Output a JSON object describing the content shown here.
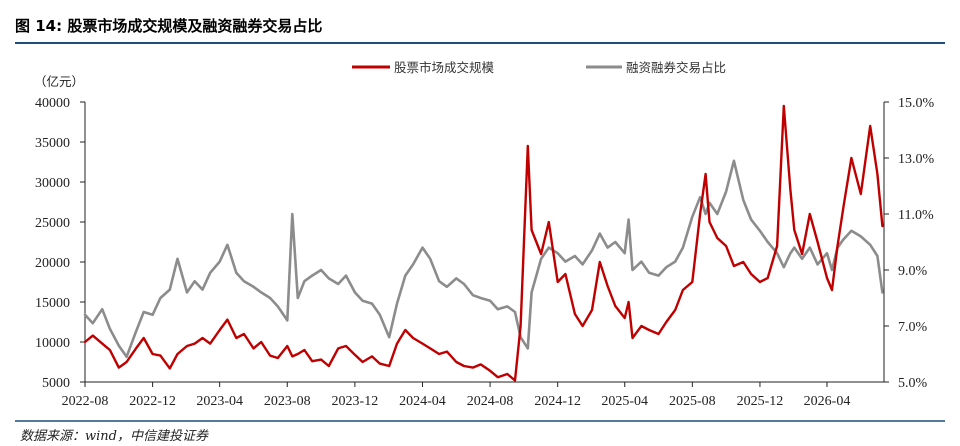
{
  "title": "图 14: 股票市场成交规模及融资融券交易占比",
  "source": "数据来源：wind，中信建投证券",
  "colors": {
    "rule": "#1F4E79"
  },
  "chart_data": {
    "type": "line",
    "title": "图 14: 股票市场成交规模及融资融券交易占比",
    "left_unit": "（亿元）",
    "legend": "top-center",
    "grid": false,
    "x_ticks": [
      "2022-08",
      "2022-12",
      "2023-04",
      "2023-08",
      "2023-12",
      "2024-04",
      "2024-08",
      "2024-12",
      "2025-04",
      "2025-08",
      "2025-12",
      "2026-04"
    ],
    "y_left": {
      "range": [
        5000,
        40000
      ],
      "ticks": [
        5000,
        10000,
        15000,
        20000,
        25000,
        30000,
        35000,
        40000
      ]
    },
    "y_right": {
      "range": [
        5.0,
        15.0
      ],
      "ticks": [
        5.0,
        7.0,
        9.0,
        11.0,
        13.0,
        15.0
      ],
      "tick_labels": [
        "5.0%",
        "7.0%",
        "9.0%",
        "11.0%",
        "13.0%",
        "15.0%"
      ]
    },
    "x": [
      "2022-08-01",
      "2022-08-15",
      "2022-09-01",
      "2022-09-15",
      "2022-10-01",
      "2022-10-15",
      "2022-11-01",
      "2022-11-15",
      "2022-12-01",
      "2022-12-15",
      "2023-01-01",
      "2023-01-15",
      "2023-02-01",
      "2023-02-15",
      "2023-03-01",
      "2023-03-15",
      "2023-04-01",
      "2023-04-15",
      "2023-05-01",
      "2023-05-15",
      "2023-06-01",
      "2023-06-15",
      "2023-07-01",
      "2023-07-15",
      "2023-08-01",
      "2023-08-10",
      "2023-08-20",
      "2023-09-01",
      "2023-09-15",
      "2023-10-01",
      "2023-10-15",
      "2023-11-01",
      "2023-11-15",
      "2023-12-01",
      "2023-12-15",
      "2024-01-01",
      "2024-01-15",
      "2024-02-01",
      "2024-02-15",
      "2024-03-01",
      "2024-03-15",
      "2024-04-01",
      "2024-04-15",
      "2024-05-01",
      "2024-05-15",
      "2024-06-01",
      "2024-06-15",
      "2024-07-01",
      "2024-07-15",
      "2024-08-01",
      "2024-08-15",
      "2024-09-01",
      "2024-09-15",
      "2024-09-25",
      "2024-10-08",
      "2024-10-15",
      "2024-11-01",
      "2024-11-15",
      "2024-12-01",
      "2024-12-15",
      "2025-01-01",
      "2025-01-15",
      "2025-02-01",
      "2025-02-15",
      "2025-03-01",
      "2025-03-15",
      "2025-04-01",
      "2025-04-08",
      "2025-04-15",
      "2025-05-01",
      "2025-05-15",
      "2025-06-01",
      "2025-06-15",
      "2025-07-01",
      "2025-07-15",
      "2025-08-01",
      "2025-08-15",
      "2025-08-25",
      "2025-09-01",
      "2025-09-15",
      "2025-10-01",
      "2025-10-15",
      "2025-11-01",
      "2025-11-15",
      "2025-12-01",
      "2025-12-15",
      "2026-01-01",
      "2026-01-13",
      "2026-01-25",
      "2026-02-01",
      "2026-02-15",
      "2026-03-01",
      "2026-03-15",
      "2026-04-01",
      "2026-04-10",
      "2026-04-20",
      "2026-05-01",
      "2026-05-15",
      "2026-06-01",
      "2026-06-18",
      "2026-07-01",
      "2026-07-10"
    ],
    "series": [
      {
        "name": "融资融券交易占比",
        "axis": "right",
        "unit": "%",
        "color": "#8C8C8C",
        "values": [
          7.4,
          7.1,
          7.6,
          6.9,
          6.3,
          5.9,
          6.8,
          7.5,
          7.4,
          8.0,
          8.3,
          9.4,
          8.2,
          8.6,
          8.3,
          8.9,
          9.3,
          9.9,
          8.9,
          8.6,
          8.4,
          8.2,
          8.0,
          7.7,
          7.2,
          11.0,
          8.0,
          8.6,
          8.8,
          9.0,
          8.7,
          8.5,
          8.8,
          8.2,
          7.9,
          7.8,
          7.4,
          6.6,
          7.8,
          8.8,
          9.2,
          9.8,
          9.4,
          8.6,
          8.4,
          8.7,
          8.5,
          8.1,
          8.0,
          7.9,
          7.6,
          7.7,
          7.5,
          6.6,
          6.2,
          8.2,
          9.4,
          9.8,
          9.6,
          9.3,
          9.5,
          9.2,
          9.7,
          10.3,
          9.8,
          10.0,
          9.6,
          10.8,
          9.0,
          9.3,
          8.9,
          8.8,
          9.1,
          9.3,
          9.8,
          10.9,
          11.6,
          11.0,
          11.4,
          11.0,
          11.8,
          12.9,
          11.5,
          10.8,
          10.4,
          10.0,
          9.6,
          9.1,
          9.6,
          9.8,
          9.4,
          9.8,
          9.2,
          9.6,
          9.0,
          9.8,
          10.1,
          10.4,
          10.2,
          9.9,
          9.5,
          8.2
        ]
      },
      {
        "name": "股票市场成交规模",
        "axis": "left",
        "unit": "亿元",
        "color": "#C00000",
        "values": [
          10000,
          10800,
          9800,
          9000,
          6800,
          7500,
          9200,
          10500,
          8500,
          8300,
          6700,
          8500,
          9500,
          9800,
          10500,
          9800,
          11500,
          12800,
          10500,
          11000,
          9200,
          10000,
          8300,
          8000,
          9500,
          8200,
          8500,
          9000,
          7600,
          7800,
          7000,
          9200,
          9500,
          8400,
          7500,
          8200,
          7300,
          7000,
          9800,
          11500,
          10500,
          9800,
          9200,
          8500,
          8800,
          7500,
          7000,
          6800,
          7200,
          6400,
          5600,
          6000,
          5200,
          12000,
          34500,
          24000,
          21000,
          25000,
          17500,
          18500,
          13500,
          12000,
          14000,
          20000,
          17000,
          14500,
          13000,
          15000,
          10500,
          12000,
          11500,
          11000,
          12500,
          14000,
          16500,
          17500,
          26000,
          31000,
          25000,
          23000,
          22000,
          19500,
          20000,
          18500,
          17500,
          18000,
          22000,
          39500,
          29000,
          24000,
          21000,
          26000,
          22500,
          18000,
          16500,
          22000,
          27000,
          33000,
          28500,
          37000,
          31000,
          24500
        ]
      }
    ]
  }
}
